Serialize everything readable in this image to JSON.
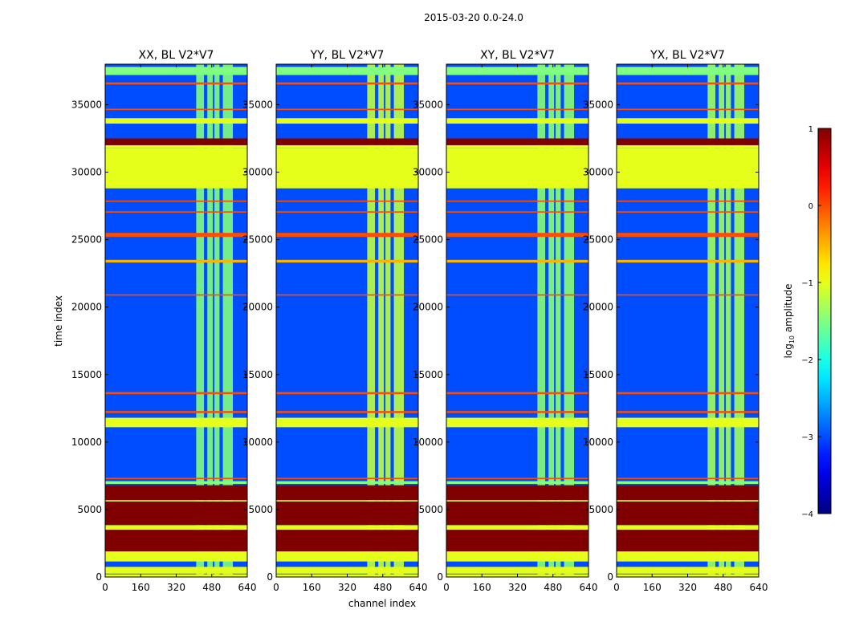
{
  "figure": {
    "suptitle": "2015-03-20 0.0-24.0"
  },
  "chart_data": {
    "type": "heatmap",
    "xlabel": "channel index",
    "ylabel": "time index",
    "xlim": [
      0,
      640
    ],
    "ylim": [
      0,
      38000
    ],
    "xticks": [
      0,
      160,
      320,
      480,
      640
    ],
    "yticks": [
      0,
      5000,
      10000,
      15000,
      20000,
      25000,
      30000,
      35000
    ],
    "panels": [
      {
        "title": "XX, BL V2*V7",
        "bright_strength": 0.7
      },
      {
        "title": "YY, BL V2*V7",
        "bright_strength": 1.0
      },
      {
        "title": "XY, BL V2*V7",
        "bright_strength": 0.75
      },
      {
        "title": "YX, BL V2*V7",
        "bright_strength": 0.85
      }
    ],
    "bright_channel_blocks": [
      [
        410,
        445
      ],
      [
        460,
        485
      ],
      [
        492,
        515
      ],
      [
        530,
        575
      ]
    ],
    "background_log10_amplitude": -3,
    "horizontal_bands": [
      {
        "t0": 0,
        "t1": 200,
        "log10_amplitude": -1
      },
      {
        "t0": 250,
        "t1": 750,
        "log10_amplitude": -1
      },
      {
        "t0": 1150,
        "t1": 1900,
        "log10_amplitude": -1
      },
      {
        "t0": 1900,
        "t1": 3500,
        "log10_amplitude": 1
      },
      {
        "t0": 3500,
        "t1": 3850,
        "log10_amplitude": -1
      },
      {
        "t0": 3850,
        "t1": 5600,
        "log10_amplitude": 1
      },
      {
        "t0": 5600,
        "t1": 5700,
        "log10_amplitude": -1
      },
      {
        "t0": 5700,
        "t1": 6800,
        "log10_amplitude": 1
      },
      {
        "t0": 6900,
        "t1": 7100,
        "log10_amplitude": -1.5
      },
      {
        "t0": 7250,
        "t1": 7350,
        "log10_amplitude": 0
      },
      {
        "t0": 11100,
        "t1": 11800,
        "log10_amplitude": -1
      },
      {
        "t0": 12150,
        "t1": 12300,
        "log10_amplitude": 0
      },
      {
        "t0": 13550,
        "t1": 13700,
        "log10_amplitude": 0
      },
      {
        "t0": 20850,
        "t1": 20950,
        "log10_amplitude": 0
      },
      {
        "t0": 23300,
        "t1": 23500,
        "log10_amplitude": -0.5
      },
      {
        "t0": 25200,
        "t1": 25500,
        "log10_amplitude": 0
      },
      {
        "t0": 27000,
        "t1": 27100,
        "log10_amplitude": 0
      },
      {
        "t0": 27800,
        "t1": 27900,
        "log10_amplitude": 0
      },
      {
        "t0": 28800,
        "t1": 31800,
        "log10_amplitude": -1
      },
      {
        "t0": 31800,
        "t1": 32000,
        "log10_amplitude": -1
      },
      {
        "t0": 32000,
        "t1": 32500,
        "log10_amplitude": 1
      },
      {
        "t0": 33600,
        "t1": 34000,
        "log10_amplitude": -1
      },
      {
        "t0": 34600,
        "t1": 34700,
        "log10_amplitude": 0
      },
      {
        "t0": 36500,
        "t1": 36650,
        "log10_amplitude": 0
      },
      {
        "t0": 37200,
        "t1": 37800,
        "log10_amplitude": -1.5
      }
    ],
    "colorbar": {
      "label_prefix": "log",
      "label_subscript": "10",
      "label_suffix": " amplitude",
      "range": [
        -4,
        1
      ],
      "ticks": [
        "1",
        "0",
        "−1",
        "−2",
        "−3",
        "−4"
      ],
      "tick_values": [
        1,
        0,
        -1,
        -2,
        -3,
        -4
      ],
      "colormap": "jet"
    }
  }
}
